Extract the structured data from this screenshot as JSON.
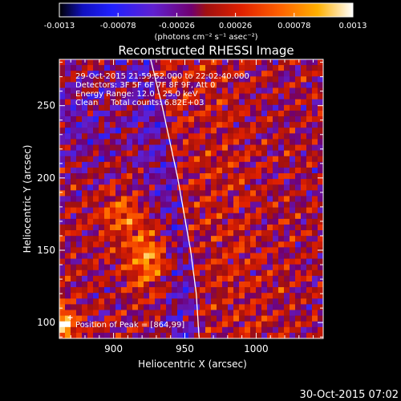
{
  "colorbar": {
    "tick_labels": [
      "-0.0013",
      "-0.00078",
      "-0.00026",
      "0.00026",
      "0.00078",
      "0.0013"
    ],
    "tick_values": [
      -0.0013,
      -0.00078,
      -0.00026,
      0.00026,
      0.00078,
      0.0013
    ],
    "min": -0.0013,
    "max": 0.0013,
    "unit_label": "(photons cm⁻² s⁻¹ asec⁻²)"
  },
  "chart_data": {
    "type": "heatmap",
    "title": "Reconstructed RHESSI Image",
    "xlabel": "Heliocentric X (arcsec)",
    "ylabel": "Heliocentric Y (arcsec)",
    "xlim": [
      862,
      1047
    ],
    "ylim": [
      89,
      282
    ],
    "x_ticks": [
      900,
      950,
      1000
    ],
    "y_ticks": [
      100,
      150,
      200,
      250
    ],
    "x_tick_labels": [
      "900",
      "950",
      "1000"
    ],
    "y_tick_labels": [
      "100",
      "150",
      "200",
      "250"
    ],
    "grid": {
      "nx": 47,
      "ny": 49
    },
    "value_range": [
      -0.0013,
      0.0013
    ],
    "colormap_stops": [
      {
        "v": 0.0,
        "color": "#000000"
      },
      {
        "v": 0.08,
        "color": "#1010c0"
      },
      {
        "v": 0.18,
        "color": "#2020ff"
      },
      {
        "v": 0.32,
        "color": "#6020d0"
      },
      {
        "v": 0.45,
        "color": "#700070"
      },
      {
        "v": 0.5,
        "color": "#a01010"
      },
      {
        "v": 0.62,
        "color": "#e02000"
      },
      {
        "v": 0.75,
        "color": "#ff6000"
      },
      {
        "v": 0.88,
        "color": "#ffb000"
      },
      {
        "v": 1.0,
        "color": "#ffffff"
      }
    ],
    "limb": [
      [
        926,
        282
      ],
      [
        934,
        250
      ],
      [
        945,
        200
      ],
      [
        954,
        150
      ],
      [
        958,
        120
      ],
      [
        960,
        89
      ]
    ],
    "info_lines": [
      "29-Oct-2015 21:59:52.000 to 22:02:40.000",
      "Detectors: 3F 5F 6F 7F 8F 9F, Att 0",
      "Energy Range: 12.0 - 25.0 keV",
      "Clean     Total counts: 6.82E+03"
    ],
    "peak_label": "Position of Peak = [864,99]",
    "peak": [
      864,
      99
    ]
  },
  "footer": {
    "timestamp": "30-Oct-2015 07:02"
  }
}
